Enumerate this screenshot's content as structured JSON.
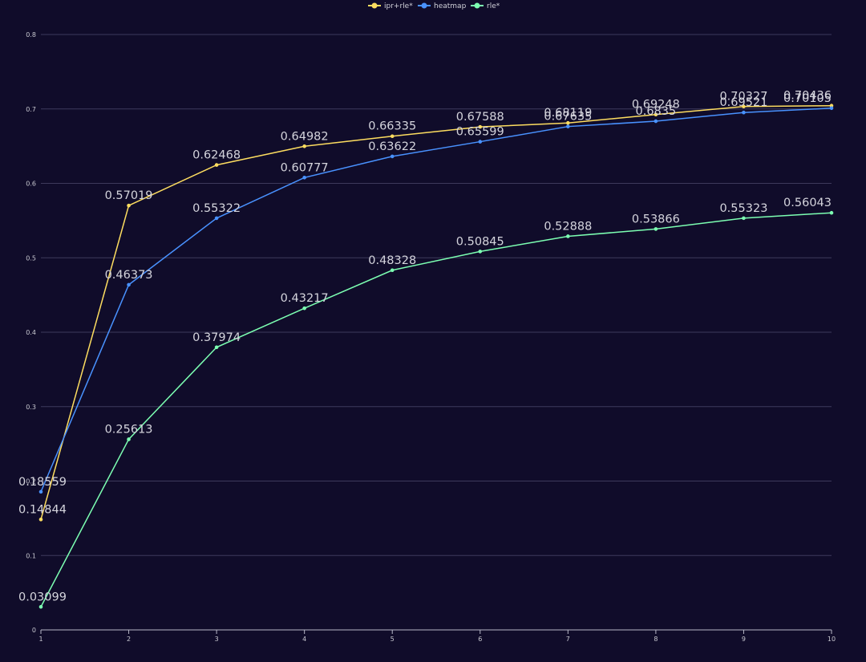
{
  "chart_data": {
    "type": "line",
    "title": "",
    "xlabel": "",
    "ylabel": "",
    "x": [
      1,
      2,
      3,
      4,
      5,
      6,
      7,
      8,
      9,
      10
    ],
    "ylim": [
      0,
      0.8
    ],
    "yticks": [
      "0",
      "0.1",
      "0.2",
      "0.3",
      "0.4",
      "0.5",
      "0.6",
      "0.7",
      "0.8"
    ],
    "grid": true,
    "legend": "top-center",
    "series": [
      {
        "name": "ipr+rle*",
        "color": "#fddd60",
        "values": [
          0.14844,
          0.57019,
          0.62468,
          0.64982,
          0.66335,
          0.67588,
          0.68119,
          0.69248,
          0.70327,
          0.70436
        ],
        "labels": [
          "0.14844",
          "0.57019",
          "0.62468",
          "0.64982",
          "0.66335",
          "0.67588",
          "0.68119",
          "0.69248",
          "0.70327",
          "0.70436"
        ]
      },
      {
        "name": "heatmap",
        "color": "#4992ff",
        "values": [
          0.18559,
          0.46373,
          0.55322,
          0.60777,
          0.63622,
          0.65599,
          0.67635,
          0.6835,
          0.69521,
          0.70105
        ],
        "labels": [
          "0.18559",
          "0.46373",
          "0.55322",
          "0.60777",
          "0.63622",
          "0.65599",
          "0.67635",
          "0.6835",
          "0.69521",
          "0.70105"
        ]
      },
      {
        "name": "rle*",
        "color": "#7cffb2",
        "values": [
          0.03099,
          0.25613,
          0.37974,
          0.43217,
          0.48328,
          0.50845,
          0.52888,
          0.53866,
          0.55323,
          0.56043
        ],
        "labels": [
          "0.03099",
          "0.25613",
          "0.37974",
          "0.43217",
          "0.48328",
          "0.50845",
          "0.52888",
          "0.53866",
          "0.55323",
          "0.56043"
        ]
      }
    ]
  }
}
